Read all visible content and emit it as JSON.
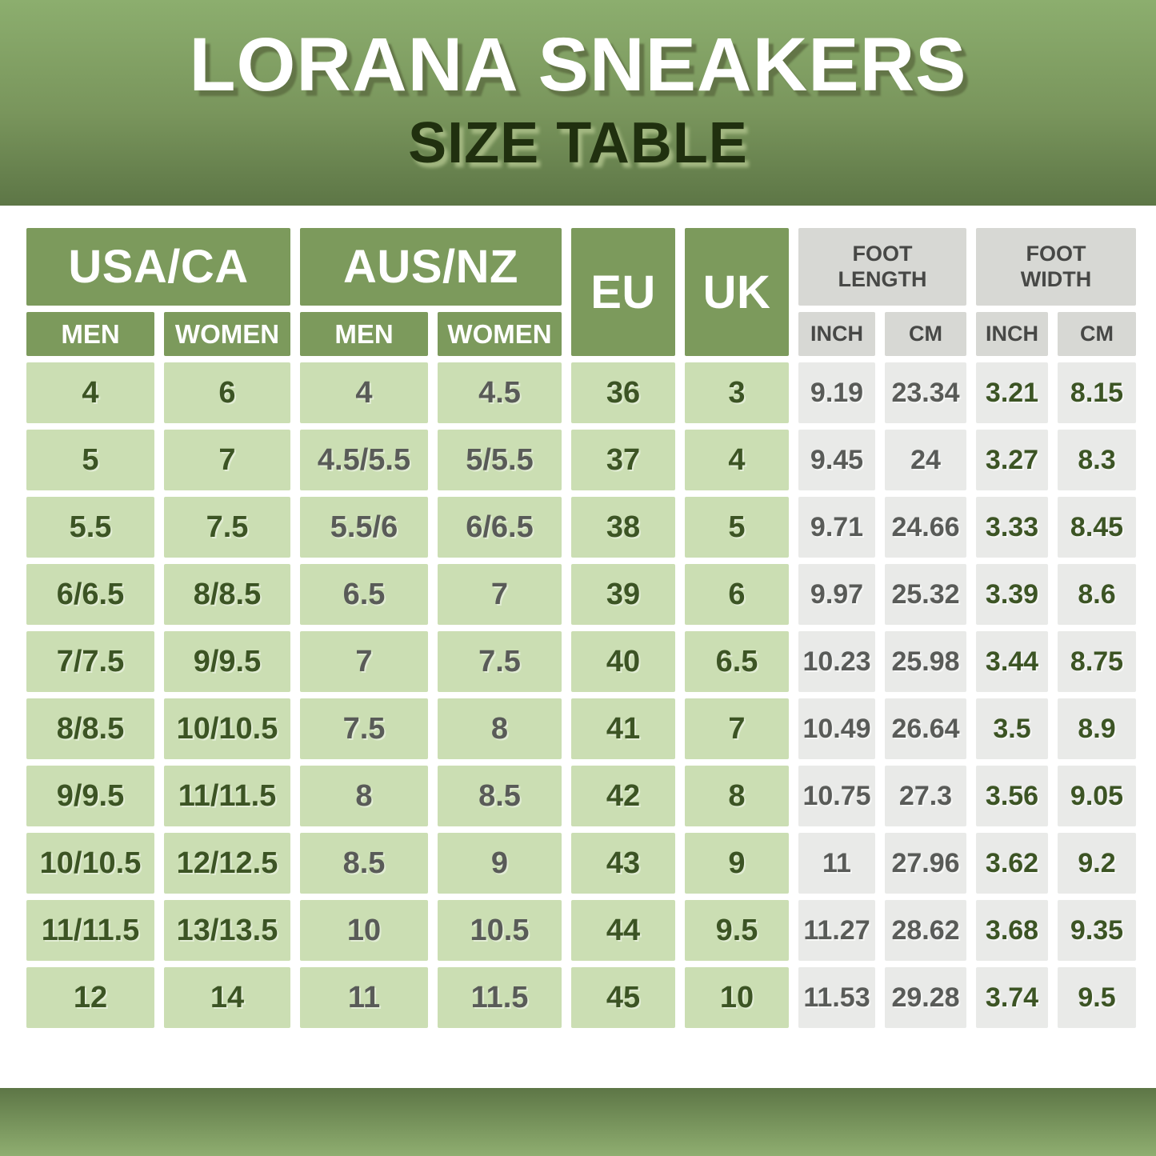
{
  "header": {
    "title": "LORANA SNEAKERS",
    "subtitle": "SIZE TABLE"
  },
  "table": {
    "groups": {
      "usa_ca": "USA/CA",
      "aus_nz": "AUS/NZ",
      "eu": "EU",
      "uk": "UK",
      "foot_length": "FOOT LENGTH",
      "foot_width": "FOOT WIDTH"
    },
    "subheaders": {
      "usa_men": "MEN",
      "usa_women": "WOMEN",
      "aus_men": "MEN",
      "aus_women": "WOMEN",
      "len_inch": "INCH",
      "len_cm": "CM",
      "wid_inch": "INCH",
      "wid_cm": "CM"
    },
    "columns": [
      "usa_men",
      "usa_women",
      "aus_men",
      "aus_women",
      "eu",
      "uk",
      "len_inch",
      "len_cm",
      "wid_inch",
      "wid_cm"
    ],
    "rows": [
      [
        "4",
        "6",
        "4",
        "4.5",
        "36",
        "3",
        "9.19",
        "23.34",
        "3.21",
        "8.15"
      ],
      [
        "5",
        "7",
        "4.5/5.5",
        "5/5.5",
        "37",
        "4",
        "9.45",
        "24",
        "3.27",
        "8.3"
      ],
      [
        "5.5",
        "7.5",
        "5.5/6",
        "6/6.5",
        "38",
        "5",
        "9.71",
        "24.66",
        "3.33",
        "8.45"
      ],
      [
        "6/6.5",
        "8/8.5",
        "6.5",
        "7",
        "39",
        "6",
        "9.97",
        "25.32",
        "3.39",
        "8.6"
      ],
      [
        "7/7.5",
        "9/9.5",
        "7",
        "7.5",
        "40",
        "6.5",
        "10.23",
        "25.98",
        "3.44",
        "8.75"
      ],
      [
        "8/8.5",
        "10/10.5",
        "7.5",
        "8",
        "41",
        "7",
        "10.49",
        "26.64",
        "3.5",
        "8.9"
      ],
      [
        "9/9.5",
        "11/11.5",
        "8",
        "8.5",
        "42",
        "8",
        "10.75",
        "27.3",
        "3.56",
        "9.05"
      ],
      [
        "10/10.5",
        "12/12.5",
        "8.5",
        "9",
        "43",
        "9",
        "11",
        "27.96",
        "3.62",
        "9.2"
      ],
      [
        "11/11.5",
        "13/13.5",
        "10",
        "10.5",
        "44",
        "9.5",
        "11.27",
        "28.62",
        "3.68",
        "9.35"
      ],
      [
        "12",
        "14",
        "11",
        "11.5",
        "45",
        "10",
        "11.53",
        "29.28",
        "3.74",
        "9.5"
      ]
    ]
  },
  "colors": {
    "banner_top": "#8cae6e",
    "banner_deep": "#5d7646",
    "header_box_green": "#7c9a5c",
    "cell_green": "#cbdeb3",
    "header_box_gray": "#d7d8d4",
    "cell_gray": "#e9eae8",
    "text_dark_green": "#3c5424",
    "text_gray": "#595b58",
    "text_header_gray": "#474846",
    "subtitle_color": "#20300f"
  }
}
